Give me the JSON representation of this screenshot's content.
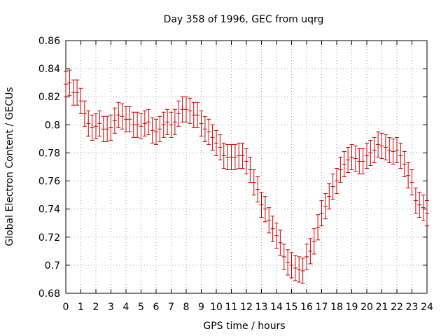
{
  "chart_data": {
    "type": "scatter",
    "title": "Day 358 of 1996, GEC from uqrg",
    "xlabel": "GPS time / hours",
    "ylabel": "Global Electron Content / GECUs",
    "xlim": [
      0,
      24
    ],
    "ylim": [
      0.68,
      0.86
    ],
    "x_ticks": [
      "0",
      "1",
      "2",
      "3",
      "4",
      "5",
      "6",
      "7",
      "8",
      "9",
      "10",
      "11",
      "12",
      "13",
      "14",
      "15",
      "16",
      "17",
      "18",
      "19",
      "20",
      "21",
      "22",
      "23",
      "24"
    ],
    "y_ticks": [
      "0.68",
      "0.7",
      "0.72",
      "0.74",
      "0.76",
      "0.78",
      "0.8",
      "0.82",
      "0.84",
      "0.86"
    ],
    "grid": true,
    "legend": "none",
    "error_bar": 0.009,
    "series": [
      {
        "color": "#cc0000",
        "x": [
          0,
          0.25,
          0.5,
          0.75,
          1,
          1.25,
          1.5,
          1.75,
          2,
          2.25,
          2.5,
          2.75,
          3,
          3.25,
          3.5,
          3.75,
          4,
          4.25,
          4.5,
          4.75,
          5,
          5.25,
          5.5,
          5.75,
          6,
          6.25,
          6.5,
          6.75,
          7,
          7.25,
          7.5,
          7.75,
          8,
          8.25,
          8.5,
          8.75,
          9,
          9.25,
          9.5,
          9.75,
          10,
          10.25,
          10.5,
          10.75,
          11,
          11.25,
          11.5,
          11.75,
          12,
          12.25,
          12.5,
          12.75,
          13,
          13.25,
          13.5,
          13.75,
          14,
          14.25,
          14.5,
          14.75,
          15,
          15.25,
          15.5,
          15.75,
          16,
          16.25,
          16.5,
          16.75,
          17,
          17.25,
          17.5,
          17.75,
          18,
          18.25,
          18.5,
          18.75,
          19,
          19.25,
          19.5,
          19.75,
          20,
          20.25,
          20.5,
          20.75,
          21,
          21.25,
          21.5,
          21.75,
          22,
          22.25,
          22.5,
          22.75,
          23,
          23.25,
          23.5,
          23.75,
          24
        ],
        "y": [
          0.829,
          0.83,
          0.823,
          0.823,
          0.817,
          0.808,
          0.801,
          0.798,
          0.799,
          0.801,
          0.797,
          0.797,
          0.798,
          0.803,
          0.807,
          0.806,
          0.804,
          0.804,
          0.8,
          0.8,
          0.799,
          0.801,
          0.802,
          0.796,
          0.795,
          0.797,
          0.8,
          0.802,
          0.8,
          0.802,
          0.808,
          0.811,
          0.811,
          0.81,
          0.807,
          0.807,
          0.801,
          0.797,
          0.795,
          0.791,
          0.787,
          0.784,
          0.778,
          0.777,
          0.777,
          0.777,
          0.778,
          0.778,
          0.774,
          0.768,
          0.759,
          0.754,
          0.743,
          0.74,
          0.732,
          0.726,
          0.721,
          0.716,
          0.706,
          0.702,
          0.7,
          0.698,
          0.697,
          0.696,
          0.706,
          0.71,
          0.717,
          0.727,
          0.737,
          0.742,
          0.749,
          0.756,
          0.76,
          0.768,
          0.772,
          0.775,
          0.777,
          0.776,
          0.774,
          0.774,
          0.778,
          0.78,
          0.782,
          0.786,
          0.785,
          0.784,
          0.782,
          0.781,
          0.782,
          0.778,
          0.772,
          0.764,
          0.759,
          0.746,
          0.743,
          0.741,
          0.737
        ]
      }
    ]
  }
}
